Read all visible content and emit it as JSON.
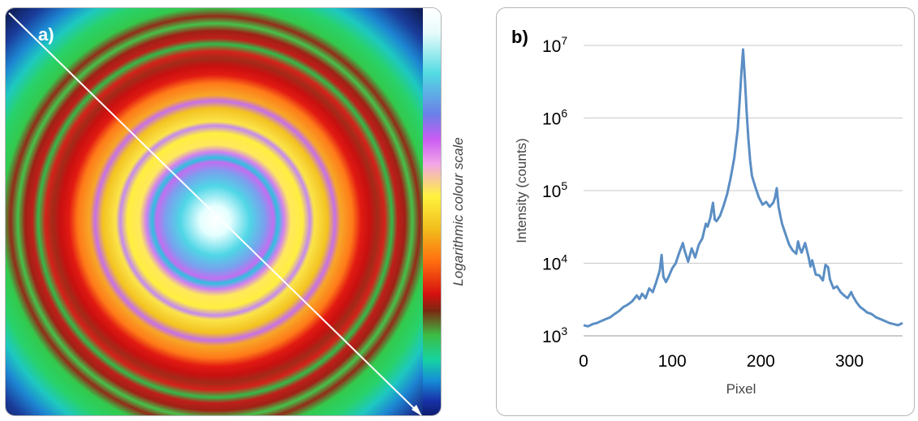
{
  "panel_a": {
    "label": "a)",
    "colorbar_label": "Logarithmic colour scale"
  },
  "panel_b": {
    "label": "b)"
  },
  "chart_data": {
    "type": "line",
    "xlabel": "Pixel",
    "ylabel": "Intensity (counts)",
    "xlim": [
      0,
      360
    ],
    "ylim": [
      1000,
      10000000
    ],
    "y_scale": "log",
    "grid": "horizontal",
    "x_ticks": [
      0,
      100,
      200,
      300
    ],
    "x_tick_labels": [
      "0",
      "100",
      "200",
      "300"
    ],
    "y_ticks": [
      1000,
      10000,
      100000,
      1000000,
      10000000
    ],
    "y_tick_labels": [
      {
        "base": "10",
        "exp": "3"
      },
      {
        "base": "10",
        "exp": "4"
      },
      {
        "base": "10",
        "exp": "5"
      },
      {
        "base": "10",
        "exp": "6"
      },
      {
        "base": "10",
        "exp": "7"
      }
    ],
    "line_color": "#5b8ec4",
    "series": [
      {
        "x": [
          0,
          5,
          10,
          15,
          20,
          25,
          30,
          35,
          40,
          45,
          50,
          55,
          60,
          63,
          66,
          70,
          74,
          78,
          82,
          86,
          88,
          90,
          93,
          96,
          100,
          104,
          108,
          112,
          114,
          118,
          122,
          126,
          130,
          134,
          138,
          140,
          143,
          146,
          148,
          150,
          154,
          158,
          162,
          166,
          170,
          174,
          176,
          178,
          180,
          182,
          184,
          186,
          188,
          190,
          194,
          198,
          202,
          206,
          210,
          214,
          216,
          218,
          220,
          222,
          224,
          228,
          232,
          236,
          240,
          242,
          244,
          246,
          250,
          254,
          256,
          258,
          262,
          266,
          270,
          273,
          276,
          278,
          282,
          286,
          290,
          294,
          298,
          302,
          304,
          308,
          312,
          316,
          320,
          325,
          330,
          335,
          340,
          345,
          350,
          355,
          360
        ],
        "y": [
          1400,
          1350,
          1450,
          1500,
          1600,
          1700,
          1800,
          2000,
          2200,
          2500,
          2700,
          3000,
          3600,
          3200,
          3800,
          3300,
          4500,
          4000,
          5500,
          8000,
          13000,
          6500,
          5500,
          6500,
          8500,
          10000,
          14000,
          19000,
          15000,
          10500,
          16000,
          12000,
          18000,
          22000,
          35000,
          32000,
          42000,
          68000,
          40000,
          38000,
          45000,
          62000,
          90000,
          150000,
          280000,
          700000,
          1600000,
          4000000,
          8800000,
          3500000,
          1200000,
          500000,
          260000,
          160000,
          110000,
          80000,
          64000,
          70000,
          60000,
          68000,
          80000,
          108000,
          60000,
          45000,
          35000,
          25000,
          18000,
          15000,
          13500,
          20000,
          16000,
          14000,
          19000,
          12000,
          9000,
          11000,
          7000,
          6800,
          5800,
          9500,
          8800,
          6000,
          4500,
          4800,
          4000,
          3600,
          3300,
          4000,
          3500,
          2900,
          2500,
          2300,
          2100,
          2000,
          1800,
          1700,
          1600,
          1500,
          1450,
          1400,
          1500
        ]
      }
    ]
  }
}
